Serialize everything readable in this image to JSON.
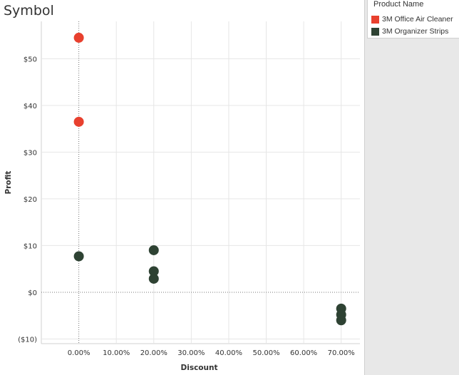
{
  "title": "Symbol",
  "legend": {
    "title": "Product Name",
    "items": [
      {
        "label": "3M Office Air Cleaner",
        "color": "#e8402e"
      },
      {
        "label": "3M Organizer Strips",
        "color": "#2e4233"
      }
    ]
  },
  "chart_data": {
    "type": "scatter",
    "xlabel": "Discount",
    "ylabel": "Profit",
    "xlim": [
      -0.1,
      0.75
    ],
    "ylim": [
      -11,
      58
    ],
    "x_ticks": [
      0,
      0.1,
      0.2,
      0.3,
      0.4,
      0.5,
      0.6,
      0.7
    ],
    "x_tick_labels": [
      "0.00%",
      "10.00%",
      "20.00%",
      "30.00%",
      "40.00%",
      "50.00%",
      "60.00%",
      "70.00%"
    ],
    "y_ticks": [
      -10,
      0,
      10,
      20,
      30,
      40,
      50
    ],
    "y_tick_labels": [
      "($10)",
      "$0",
      "$10",
      "$20",
      "$30",
      "$40",
      "$50"
    ],
    "grid": true,
    "legend_position": "right",
    "series": [
      {
        "name": "3M Office Air Cleaner",
        "color": "#e8402e",
        "points": [
          {
            "x": 0.0,
            "y": 54.5
          },
          {
            "x": 0.0,
            "y": 36.5
          }
        ]
      },
      {
        "name": "3M Organizer Strips",
        "color": "#2e4233",
        "points": [
          {
            "x": 0.0,
            "y": 7.7
          },
          {
            "x": 0.2,
            "y": 9.0
          },
          {
            "x": 0.2,
            "y": 4.5
          },
          {
            "x": 0.2,
            "y": 2.9
          },
          {
            "x": 0.7,
            "y": -3.5
          },
          {
            "x": 0.7,
            "y": -4.8
          },
          {
            "x": 0.7,
            "y": -6.0
          }
        ]
      }
    ]
  }
}
